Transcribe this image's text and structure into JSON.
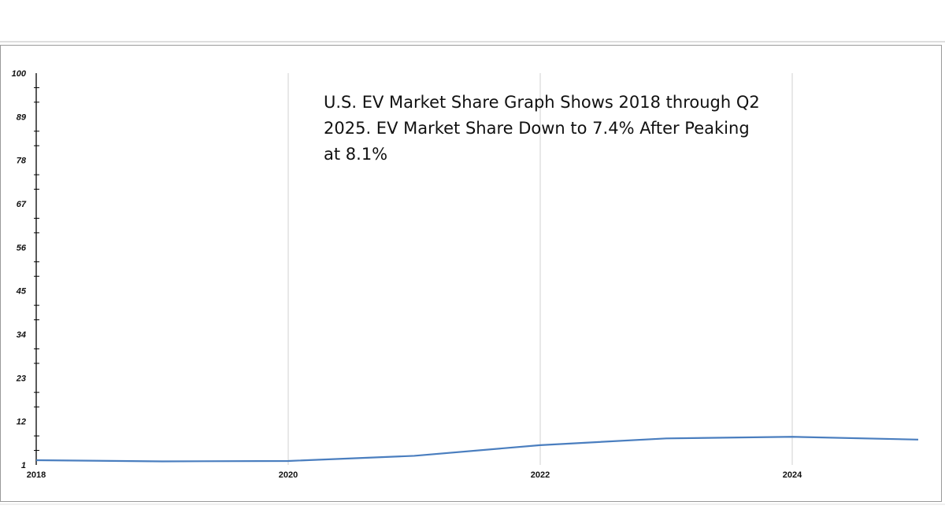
{
  "chart_data": {
    "type": "line",
    "title": "U.S. EV Market Share Graph Shows 2018 through Q2 2025. EV Market Share Down to 7.4% After Peaking at 8.1%",
    "xlabel": "",
    "ylabel": "",
    "x": [
      2018,
      2019,
      2020,
      2021,
      2022,
      2023,
      2024,
      2025
    ],
    "values": [
      2.2,
      1.9,
      2.0,
      3.3,
      6.0,
      7.7,
      8.1,
      7.4
    ],
    "xlim": [
      2018,
      2025
    ],
    "ylim": [
      1,
      100
    ],
    "y_ticks": [
      "1",
      "12",
      "23",
      "34",
      "45",
      "56",
      "67",
      "78",
      "89",
      "100"
    ],
    "x_ticks": [
      "2018",
      "2020",
      "2022",
      "2024"
    ],
    "grid": "vertical",
    "line_color": "#4a7ebf"
  }
}
